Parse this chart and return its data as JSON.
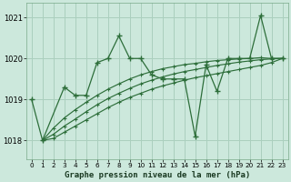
{
  "bg_color": "#cce8dc",
  "grid_color": "#aacfbe",
  "line_color": "#2d6e3a",
  "title": "Graphe pression niveau de la mer (hPa)",
  "ylabel_vals": [
    1018,
    1019,
    1020,
    1021
  ],
  "xlim": [
    -0.5,
    23.5
  ],
  "ylim": [
    1017.55,
    1021.35
  ],
  "figsize": [
    3.2,
    2.0
  ],
  "series": [
    {
      "x": [
        0,
        1,
        3,
        4,
        5,
        6,
        7,
        8,
        9,
        10,
        11,
        12,
        13,
        14,
        15,
        16,
        17,
        18,
        19,
        20,
        21,
        22,
        23
      ],
      "y": [
        1019.0,
        1018.0,
        1019.3,
        1019.1,
        1019.1,
        1019.9,
        1020.0,
        1020.55,
        1020.0,
        1020.0,
        1019.6,
        1019.5,
        1019.5,
        1019.5,
        1018.1,
        1019.85,
        1019.2,
        1020.0,
        1020.0,
        1020.0,
        1021.05,
        1020.0,
        1020.0
      ]
    },
    {
      "x": [
        1,
        2,
        3,
        4,
        5,
        6,
        7,
        8,
        9,
        10,
        11,
        12,
        13,
        14,
        15,
        16,
        17,
        18,
        19,
        20,
        21,
        22,
        23
      ],
      "y": [
        1018.0,
        1018.3,
        1018.55,
        1018.75,
        1018.93,
        1019.1,
        1019.25,
        1019.38,
        1019.5,
        1019.6,
        1019.68,
        1019.75,
        1019.8,
        1019.85,
        1019.88,
        1019.92,
        1019.95,
        1019.97,
        1019.99,
        1020.0,
        1020.02,
        1020.0,
        1020.0
      ]
    },
    {
      "x": [
        1,
        2,
        3,
        4,
        5,
        6,
        7,
        8,
        9,
        10,
        11,
        12,
        13,
        14,
        15,
        16,
        17,
        18,
        19,
        20,
        21,
        22,
        23
      ],
      "y": [
        1018.0,
        1018.15,
        1018.35,
        1018.52,
        1018.7,
        1018.87,
        1019.02,
        1019.15,
        1019.27,
        1019.38,
        1019.47,
        1019.55,
        1019.62,
        1019.68,
        1019.73,
        1019.78,
        1019.83,
        1019.87,
        1019.91,
        1019.94,
        1019.97,
        1019.99,
        1020.0
      ]
    },
    {
      "x": [
        1,
        2,
        3,
        4,
        5,
        6,
        7,
        8,
        9,
        10,
        11,
        12,
        13,
        14,
        15,
        16,
        17,
        18,
        19,
        20,
        21,
        22,
        23
      ],
      "y": [
        1018.0,
        1018.05,
        1018.2,
        1018.35,
        1018.5,
        1018.65,
        1018.8,
        1018.93,
        1019.05,
        1019.15,
        1019.25,
        1019.33,
        1019.4,
        1019.47,
        1019.53,
        1019.58,
        1019.63,
        1019.68,
        1019.73,
        1019.78,
        1019.83,
        1019.9,
        1020.0
      ]
    }
  ],
  "xtick_labels": [
    "0",
    "1",
    "2",
    "3",
    "4",
    "5",
    "6",
    "7",
    "8",
    "9",
    "10",
    "11",
    "12",
    "13",
    "14",
    "15",
    "16",
    "17",
    "18",
    "19",
    "20",
    "21",
    "22",
    "23"
  ]
}
